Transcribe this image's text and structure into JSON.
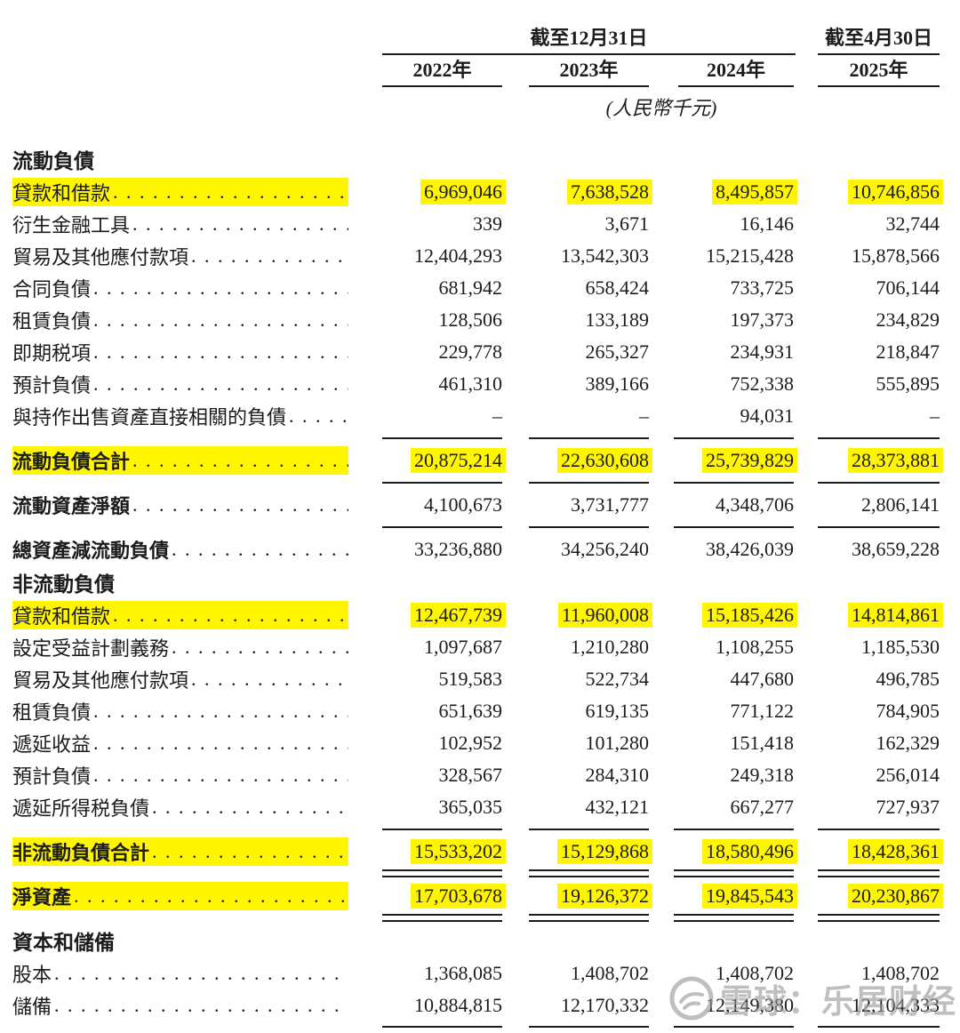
{
  "colors": {
    "highlight": "#fff500",
    "ink": "#1c1c1c",
    "watermark": "#989898"
  },
  "header": {
    "period_group_1": "截至12月31日",
    "period_group_2": "截至4月30日",
    "years": [
      "2022年",
      "2023年",
      "2024年",
      "2025年"
    ],
    "unit_note": "(人民幣千元)"
  },
  "watermark": {
    "icon": "snowball-logo",
    "text": "雪球：乐居财经"
  },
  "table": {
    "rows": [
      {
        "type": "section",
        "label": "流動負債"
      },
      {
        "type": "item",
        "label": "貸款和借款",
        "highlight": true,
        "values": [
          "6,969,046",
          "7,638,528",
          "8,495,857",
          "10,746,856"
        ]
      },
      {
        "type": "item",
        "label": "衍生金融工具",
        "values": [
          "339",
          "3,671",
          "16,146",
          "32,744"
        ]
      },
      {
        "type": "item",
        "label": "貿易及其他應付款項",
        "values": [
          "12,404,293",
          "13,542,303",
          "15,215,428",
          "15,878,566"
        ]
      },
      {
        "type": "item",
        "label": "合同負債",
        "values": [
          "681,942",
          "658,424",
          "733,725",
          "706,144"
        ]
      },
      {
        "type": "item",
        "label": "租賃負債",
        "values": [
          "128,506",
          "133,189",
          "197,373",
          "234,829"
        ]
      },
      {
        "type": "item",
        "label": "即期税項",
        "values": [
          "229,778",
          "265,327",
          "234,931",
          "218,847"
        ]
      },
      {
        "type": "item",
        "label": "預計負債",
        "values": [
          "461,310",
          "389,166",
          "752,338",
          "555,895"
        ]
      },
      {
        "type": "item",
        "label": "與持作出售資產直接相關的負債",
        "values": [
          "–",
          "–",
          "94,031",
          "–"
        ],
        "rule_below": "single"
      },
      {
        "type": "total",
        "label": "流動負債合計",
        "highlight": true,
        "values": [
          "20,875,214",
          "22,630,608",
          "25,739,829",
          "28,373,881"
        ],
        "rule_below": "single"
      },
      {
        "type": "total",
        "label": "流動資產淨額",
        "values": [
          "4,100,673",
          "3,731,777",
          "4,348,706",
          "2,806,141"
        ],
        "rule_below": "single"
      },
      {
        "type": "total",
        "label": "總資產減流動負債",
        "values": [
          "33,236,880",
          "34,256,240",
          "38,426,039",
          "38,659,228"
        ]
      },
      {
        "type": "section",
        "label": "非流動負債"
      },
      {
        "type": "item",
        "label": "貸款和借款",
        "highlight": true,
        "values": [
          "12,467,739",
          "11,960,008",
          "15,185,426",
          "14,814,861"
        ]
      },
      {
        "type": "item",
        "label": "設定受益計劃義務",
        "values": [
          "1,097,687",
          "1,210,280",
          "1,108,255",
          "1,185,530"
        ]
      },
      {
        "type": "item",
        "label": "貿易及其他應付款項",
        "values": [
          "519,583",
          "522,734",
          "447,680",
          "496,785"
        ]
      },
      {
        "type": "item",
        "label": "租賃負債",
        "values": [
          "651,639",
          "619,135",
          "771,122",
          "784,905"
        ]
      },
      {
        "type": "item",
        "label": "遞延收益",
        "values": [
          "102,952",
          "101,280",
          "151,418",
          "162,329"
        ]
      },
      {
        "type": "item",
        "label": "預計負債",
        "values": [
          "328,567",
          "284,310",
          "249,318",
          "256,014"
        ]
      },
      {
        "type": "item",
        "label": "遞延所得税負債",
        "values": [
          "365,035",
          "432,121",
          "667,277",
          "727,937"
        ],
        "rule_below": "single"
      },
      {
        "type": "total",
        "label": "非流動負債合計",
        "highlight": true,
        "values": [
          "15,533,202",
          "15,129,868",
          "18,580,496",
          "18,428,361"
        ],
        "rule_below": "double"
      },
      {
        "type": "total",
        "label": "淨資產",
        "highlight": true,
        "values": [
          "17,703,678",
          "19,126,372",
          "19,845,543",
          "20,230,867"
        ],
        "rule_below": "double"
      },
      {
        "type": "section",
        "label": "資本和儲備"
      },
      {
        "type": "item",
        "label": "股本",
        "values": [
          "1,368,085",
          "1,408,702",
          "1,408,702",
          "1,408,702"
        ]
      },
      {
        "type": "item",
        "label": "儲備",
        "values": [
          "10,884,815",
          "12,170,332",
          "12,149,380",
          "12,104,333"
        ],
        "rule_below": "single"
      }
    ]
  }
}
